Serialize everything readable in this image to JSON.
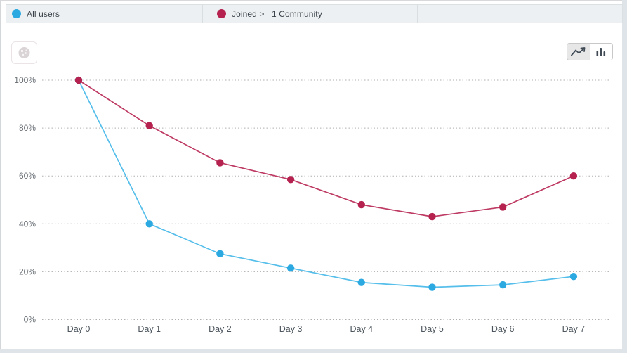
{
  "legend": {
    "items": [
      {
        "label": "All users",
        "color": "#2CA9E1"
      },
      {
        "label": "Joined >= 1 Community",
        "color": "#B5224F"
      }
    ]
  },
  "toolbar": {
    "chart_type_toggle": {
      "options": [
        {
          "name": "line-chart",
          "active": true
        },
        {
          "name": "bar-chart",
          "active": false
        }
      ]
    }
  },
  "chart_data": {
    "type": "line",
    "x": [
      "Day 0",
      "Day 1",
      "Day 2",
      "Day 3",
      "Day 4",
      "Day 5",
      "Day 6",
      "Day 7"
    ],
    "yticks": [
      "100%",
      "80%",
      "60%",
      "40%",
      "20%",
      "0%"
    ],
    "ylim": [
      0,
      100
    ],
    "grid": "horizontal-dotted",
    "legend_position": "top",
    "series": [
      {
        "name": "All users",
        "dot_color": "#2CA9E1",
        "line_color": "#55BEEA",
        "values": [
          100,
          40,
          27.5,
          21.5,
          15.5,
          13.5,
          14.5,
          18
        ]
      },
      {
        "name": "Joined >= 1 Community",
        "dot_color": "#B5224F",
        "line_color": "#BE3A63",
        "values": [
          100,
          81,
          65.5,
          58.5,
          48,
          43,
          47,
          60
        ]
      }
    ]
  },
  "colors": {
    "legend_bar_bg": "#EDF0F2",
    "panel_bg": "#FFFFFF",
    "page_bg": "#DFE4E8",
    "gridline": "#AFAFAF",
    "axis_text": "#676E74"
  }
}
